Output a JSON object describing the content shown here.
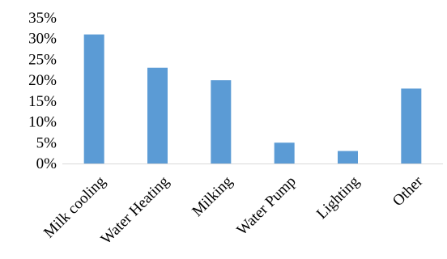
{
  "chart_data": {
    "type": "bar",
    "categories": [
      "Milk cooling",
      "Water Heating",
      "Milking",
      "Water Pump",
      "Lighting",
      "Other"
    ],
    "values": [
      31,
      23,
      20,
      5,
      3,
      18
    ],
    "ylim": [
      0,
      35
    ],
    "y_ticks": [
      0,
      5,
      10,
      15,
      20,
      25,
      30,
      35
    ],
    "y_tick_labels": [
      "0%",
      "5%",
      "10%",
      "15%",
      "20%",
      "25%",
      "30%",
      "35%"
    ],
    "value_unit": "%",
    "bar_color": "#5B9BD5",
    "grid": false,
    "legend": false
  }
}
